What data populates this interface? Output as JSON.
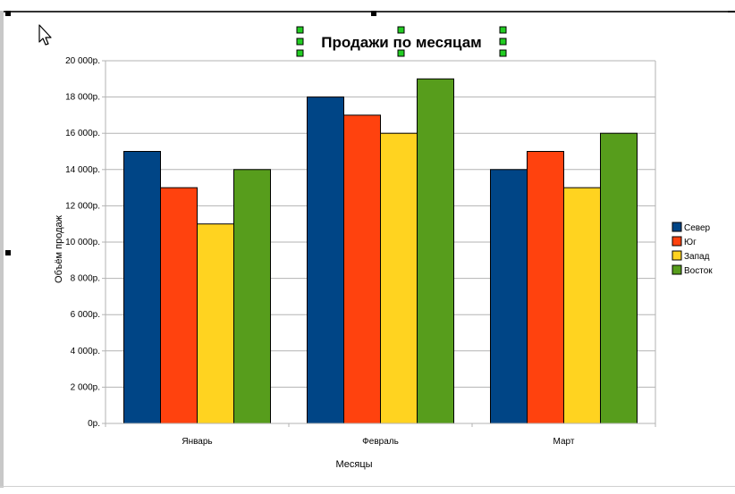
{
  "chart_data": {
    "type": "bar",
    "title": "Продажи по месяцам",
    "xlabel": "Месяцы",
    "ylabel": "Объём продаж",
    "categories": [
      "Январь",
      "Февраль",
      "Март"
    ],
    "ylim": [
      0,
      20000
    ],
    "y_ticks": [
      0,
      2000,
      4000,
      6000,
      8000,
      10000,
      12000,
      14000,
      16000,
      18000,
      20000
    ],
    "y_tick_labels": [
      "0р.",
      "2 000р.",
      "4 000р.",
      "6 000р.",
      "8 000р.",
      "10 000р.",
      "12 000р.",
      "14 000р.",
      "16 000р.",
      "18 000р.",
      "20 000р."
    ],
    "grid": true,
    "legend_position": "right",
    "series": [
      {
        "name": "Север",
        "values": [
          15000,
          18000,
          14000
        ],
        "color": "#004586"
      },
      {
        "name": "Юг",
        "values": [
          13000,
          17000,
          15000
        ],
        "color": "#ff420e"
      },
      {
        "name": "Запад",
        "values": [
          11000,
          16000,
          13000
        ],
        "color": "#ffd320"
      },
      {
        "name": "Восток",
        "values": [
          14000,
          19000,
          16000
        ],
        "color": "#579d1c"
      }
    ]
  },
  "ui": {
    "cursor_icon": "arrow-cursor-icon",
    "title_selected": true,
    "selection_handle_color": "#22cc22"
  }
}
